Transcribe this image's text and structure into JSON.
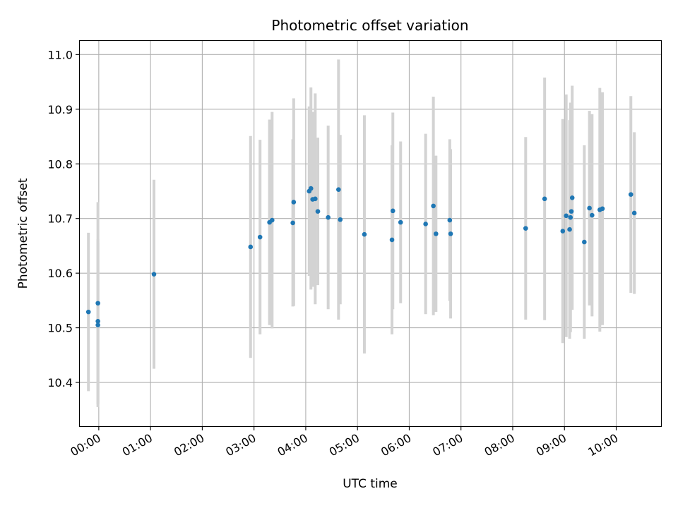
{
  "chart_data": {
    "type": "scatter",
    "title": "Photometric offset variation",
    "xlabel": "UTC time",
    "ylabel": "Photometric offset",
    "x_unit": "UTC time of day",
    "xlim": [
      "-00:22",
      "10:52"
    ],
    "ylim": [
      10.32,
      11.025
    ],
    "x_ticks": [
      "00:00",
      "01:00",
      "02:00",
      "03:00",
      "04:00",
      "05:00",
      "06:00",
      "07:00",
      "08:00",
      "09:00",
      "10:00"
    ],
    "y_ticks": [
      "10.4",
      "10.5",
      "10.6",
      "10.7",
      "10.8",
      "10.9",
      "11.0"
    ],
    "grid": true,
    "legend": "none",
    "colors": {
      "points": "#1f77b4",
      "errorbars": "#d3d3d3",
      "grid": "#b0b0b0"
    },
    "points": [
      {
        "x": "-00:12",
        "y": 10.529,
        "err": 0.145
      },
      {
        "x": "-00:01",
        "y": 10.545,
        "err": 0.185
      },
      {
        "x": "-00:01",
        "y": 10.512,
        "err": 0.15
      },
      {
        "x": "-00:01",
        "y": 10.505,
        "err": 0.15
      },
      {
        "x": "01:04",
        "y": 10.598,
        "err": 0.173
      },
      {
        "x": "02:56",
        "y": 10.648,
        "err": 0.203
      },
      {
        "x": "03:07",
        "y": 10.666,
        "err": 0.178
      },
      {
        "x": "03:18",
        "y": 10.693,
        "err": 0.188
      },
      {
        "x": "03:21",
        "y": 10.697,
        "err": 0.198
      },
      {
        "x": "03:45",
        "y": 10.692,
        "err": 0.153
      },
      {
        "x": "03:46",
        "y": 10.73,
        "err": 0.19
      },
      {
        "x": "04:04",
        "y": 10.75,
        "err": 0.155
      },
      {
        "x": "04:06",
        "y": 10.755,
        "err": 0.185
      },
      {
        "x": "04:08",
        "y": 10.735,
        "err": 0.16
      },
      {
        "x": "04:11",
        "y": 10.736,
        "err": 0.193
      },
      {
        "x": "04:14",
        "y": 10.713,
        "err": 0.135
      },
      {
        "x": "04:26",
        "y": 10.702,
        "err": 0.168
      },
      {
        "x": "04:38",
        "y": 10.753,
        "err": 0.238
      },
      {
        "x": "04:40",
        "y": 10.698,
        "err": 0.155
      },
      {
        "x": "05:08",
        "y": 10.671,
        "err": 0.218
      },
      {
        "x": "05:40",
        "y": 10.661,
        "err": 0.173
      },
      {
        "x": "05:41",
        "y": 10.714,
        "err": 0.18
      },
      {
        "x": "05:50",
        "y": 10.693,
        "err": 0.148
      },
      {
        "x": "06:19",
        "y": 10.69,
        "err": 0.165
      },
      {
        "x": "06:28",
        "y": 10.723,
        "err": 0.2
      },
      {
        "x": "06:31",
        "y": 10.672,
        "err": 0.143
      },
      {
        "x": "06:47",
        "y": 10.697,
        "err": 0.148
      },
      {
        "x": "06:48",
        "y": 10.672,
        "err": 0.155
      },
      {
        "x": "08:15",
        "y": 10.682,
        "err": 0.167
      },
      {
        "x": "08:37",
        "y": 10.736,
        "err": 0.222
      },
      {
        "x": "08:58",
        "y": 10.677,
        "err": 0.205
      },
      {
        "x": "09:02",
        "y": 10.705,
        "err": 0.222
      },
      {
        "x": "09:06",
        "y": 10.68,
        "err": 0.2
      },
      {
        "x": "09:07",
        "y": 10.702,
        "err": 0.21
      },
      {
        "x": "09:08",
        "y": 10.713,
        "err": 0.178
      },
      {
        "x": "09:09",
        "y": 10.738,
        "err": 0.205
      },
      {
        "x": "09:23",
        "y": 10.657,
        "err": 0.177
      },
      {
        "x": "09:29",
        "y": 10.719,
        "err": 0.178
      },
      {
        "x": "09:32",
        "y": 10.706,
        "err": 0.185
      },
      {
        "x": "09:41",
        "y": 10.716,
        "err": 0.223
      },
      {
        "x": "09:44",
        "y": 10.718,
        "err": 0.213
      },
      {
        "x": "10:17",
        "y": 10.744,
        "err": 0.18
      },
      {
        "x": "10:21",
        "y": 10.71,
        "err": 0.148
      }
    ]
  }
}
